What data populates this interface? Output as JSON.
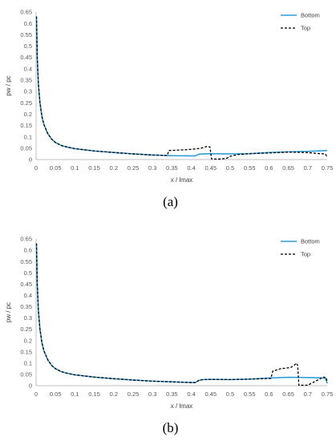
{
  "colors": {
    "bottom": "#2e9fd8",
    "top": "#000000",
    "axis": "#bfbfbf",
    "tick_text": "#595959"
  },
  "chart_data": [
    {
      "type": "line",
      "caption": "(a)",
      "xlabel": "x / lmax",
      "ylabel": "pw / pc",
      "xlim": [
        0,
        0.75
      ],
      "ylim": [
        0,
        0.65
      ],
      "x_ticks": [
        0,
        0.05,
        0.1,
        0.15,
        0.2,
        0.25,
        0.3,
        0.35,
        0.4,
        0.45,
        0.5,
        0.55,
        0.6,
        0.65,
        0.7,
        0.75
      ],
      "x_tick_labels": [
        "0",
        "0.05",
        "0.1",
        "0.15",
        "0.2",
        "0.25",
        "0.3",
        "0.35",
        "0.4",
        "0.45",
        "0.5",
        "0.55",
        "0.6",
        "0.65",
        "0.7",
        "0.75"
      ],
      "y_ticks": [
        0,
        0.05,
        0.1,
        0.15,
        0.2,
        0.25,
        0.3,
        0.35,
        0.4,
        0.45,
        0.5,
        0.55,
        0.6,
        0.65
      ],
      "y_tick_labels": [
        "0",
        "0.05",
        "0.1",
        "0.15",
        "0.2",
        "0.25",
        "0.3",
        "0.35",
        "0.4",
        "0.45",
        "0.5",
        "0.55",
        "0.6",
        "0.65"
      ],
      "grid": false,
      "legend": "top-right",
      "series": [
        {
          "name": "Bottom",
          "style": "solid",
          "points": [
            [
              0.001,
              0.63
            ],
            [
              0.003,
              0.45
            ],
            [
              0.006,
              0.33
            ],
            [
              0.01,
              0.25
            ],
            [
              0.015,
              0.19
            ],
            [
              0.02,
              0.155
            ],
            [
              0.03,
              0.115
            ],
            [
              0.04,
              0.09
            ],
            [
              0.05,
              0.075
            ],
            [
              0.065,
              0.062
            ],
            [
              0.08,
              0.055
            ],
            [
              0.1,
              0.048
            ],
            [
              0.15,
              0.038
            ],
            [
              0.2,
              0.031
            ],
            [
              0.25,
              0.025
            ],
            [
              0.3,
              0.02
            ],
            [
              0.35,
              0.017
            ],
            [
              0.41,
              0.016
            ],
            [
              0.42,
              0.024
            ],
            [
              0.45,
              0.026
            ],
            [
              0.5,
              0.025
            ],
            [
              0.55,
              0.026
            ],
            [
              0.6,
              0.031
            ],
            [
              0.65,
              0.034
            ],
            [
              0.7,
              0.036
            ],
            [
              0.75,
              0.04
            ]
          ]
        },
        {
          "name": "Top",
          "style": "dashed",
          "points": [
            [
              0.001,
              0.63
            ],
            [
              0.003,
              0.45
            ],
            [
              0.006,
              0.33
            ],
            [
              0.01,
              0.25
            ],
            [
              0.015,
              0.19
            ],
            [
              0.02,
              0.155
            ],
            [
              0.03,
              0.115
            ],
            [
              0.04,
              0.09
            ],
            [
              0.05,
              0.075
            ],
            [
              0.065,
              0.062
            ],
            [
              0.08,
              0.055
            ],
            [
              0.1,
              0.048
            ],
            [
              0.15,
              0.038
            ],
            [
              0.2,
              0.031
            ],
            [
              0.25,
              0.025
            ],
            [
              0.3,
              0.02
            ],
            [
              0.338,
              0.018
            ],
            [
              0.342,
              0.04
            ],
            [
              0.37,
              0.042
            ],
            [
              0.4,
              0.045
            ],
            [
              0.425,
              0.05
            ],
            [
              0.44,
              0.058
            ],
            [
              0.448,
              0.055
            ],
            [
              0.452,
              0.003
            ],
            [
              0.47,
              0.002
            ],
            [
              0.49,
              0.005
            ],
            [
              0.5,
              0.014
            ],
            [
              0.52,
              0.022
            ],
            [
              0.55,
              0.026
            ],
            [
              0.6,
              0.029
            ],
            [
              0.65,
              0.033
            ],
            [
              0.7,
              0.031
            ],
            [
              0.73,
              0.026
            ],
            [
              0.745,
              0.025
            ],
            [
              0.75,
              0.012
            ]
          ]
        }
      ]
    },
    {
      "type": "line",
      "caption": "(b)",
      "xlabel": "x / lmax",
      "ylabel": "pw / pc",
      "xlim": [
        0,
        0.75
      ],
      "ylim": [
        0,
        0.65
      ],
      "x_ticks": [
        0,
        0.05,
        0.1,
        0.15,
        0.2,
        0.25,
        0.3,
        0.35,
        0.4,
        0.45,
        0.5,
        0.55,
        0.6,
        0.65,
        0.7,
        0.75
      ],
      "x_tick_labels": [
        "0",
        "0.05",
        "0.1",
        "0.15",
        "0.2",
        "0.25",
        "0.3",
        "0.35",
        "0.4",
        "0.45",
        "0.5",
        "0.55",
        "0.6",
        "0.65",
        "0.7",
        "0.75"
      ],
      "y_ticks": [
        0,
        0.05,
        0.1,
        0.15,
        0.2,
        0.25,
        0.3,
        0.35,
        0.4,
        0.45,
        0.5,
        0.55,
        0.6,
        0.65
      ],
      "y_tick_labels": [
        "0",
        "0.05",
        "0.1",
        "0.15",
        "0.2",
        "0.25",
        "0.3",
        "0.35",
        "0.4",
        "0.45",
        "0.5",
        "0.55",
        "0.6",
        "0.65"
      ],
      "grid": false,
      "legend": "top-right",
      "series": [
        {
          "name": "Bottom",
          "style": "solid",
          "points": [
            [
              0.001,
              0.63
            ],
            [
              0.003,
              0.45
            ],
            [
              0.006,
              0.33
            ],
            [
              0.01,
              0.25
            ],
            [
              0.015,
              0.19
            ],
            [
              0.02,
              0.155
            ],
            [
              0.03,
              0.115
            ],
            [
              0.04,
              0.09
            ],
            [
              0.05,
              0.075
            ],
            [
              0.065,
              0.062
            ],
            [
              0.08,
              0.055
            ],
            [
              0.1,
              0.048
            ],
            [
              0.15,
              0.038
            ],
            [
              0.2,
              0.031
            ],
            [
              0.25,
              0.025
            ],
            [
              0.3,
              0.02
            ],
            [
              0.35,
              0.017
            ],
            [
              0.4,
              0.014
            ],
            [
              0.41,
              0.014
            ],
            [
              0.42,
              0.024
            ],
            [
              0.43,
              0.027
            ],
            [
              0.45,
              0.028
            ],
            [
              0.5,
              0.027
            ],
            [
              0.55,
              0.029
            ],
            [
              0.6,
              0.034
            ],
            [
              0.65,
              0.037
            ],
            [
              0.7,
              0.036
            ],
            [
              0.73,
              0.035
            ],
            [
              0.745,
              0.033
            ],
            [
              0.75,
              0.012
            ]
          ]
        },
        {
          "name": "Top",
          "style": "dashed",
          "points": [
            [
              0.001,
              0.63
            ],
            [
              0.003,
              0.45
            ],
            [
              0.006,
              0.33
            ],
            [
              0.01,
              0.25
            ],
            [
              0.015,
              0.19
            ],
            [
              0.02,
              0.155
            ],
            [
              0.03,
              0.115
            ],
            [
              0.04,
              0.09
            ],
            [
              0.05,
              0.075
            ],
            [
              0.065,
              0.062
            ],
            [
              0.08,
              0.055
            ],
            [
              0.1,
              0.048
            ],
            [
              0.15,
              0.038
            ],
            [
              0.2,
              0.031
            ],
            [
              0.25,
              0.025
            ],
            [
              0.3,
              0.02
            ],
            [
              0.35,
              0.017
            ],
            [
              0.4,
              0.014
            ],
            [
              0.41,
              0.014
            ],
            [
              0.42,
              0.024
            ],
            [
              0.43,
              0.027
            ],
            [
              0.45,
              0.028
            ],
            [
              0.5,
              0.027
            ],
            [
              0.55,
              0.029
            ],
            [
              0.605,
              0.032
            ],
            [
              0.61,
              0.065
            ],
            [
              0.63,
              0.075
            ],
            [
              0.655,
              0.08
            ],
            [
              0.665,
              0.09
            ],
            [
              0.67,
              0.1
            ],
            [
              0.674,
              0.09
            ],
            [
              0.677,
              0.002
            ],
            [
              0.7,
              0.002
            ],
            [
              0.72,
              0.02
            ],
            [
              0.74,
              0.038
            ],
            [
              0.748,
              0.035
            ],
            [
              0.75,
              0.012
            ]
          ]
        }
      ]
    }
  ]
}
